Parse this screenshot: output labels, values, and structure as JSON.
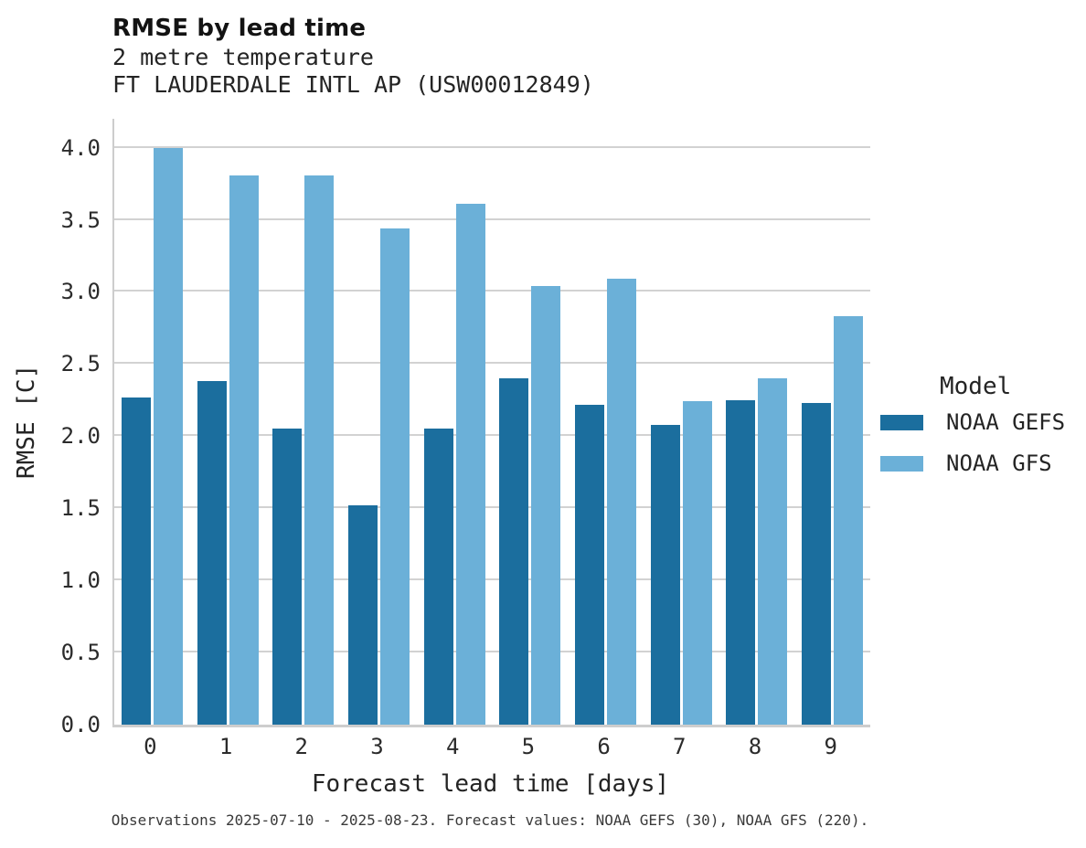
{
  "header": {
    "title": "RMSE by lead time",
    "subtitle_line1": "2 metre temperature",
    "subtitle_line2": "FT LAUDERDALE INTL AP (USW00012849)"
  },
  "legend": {
    "title": "Model"
  },
  "footer": {
    "text": "Observations 2025-07-10 - 2025-08-23. Forecast values: NOAA GEFS (30), NOAA GFS (220)."
  },
  "colors": {
    "gefs": "#1b6e9e",
    "gfs": "#6bb0d8",
    "gridline": "#d2d2d2",
    "spine": "#cdcdcd"
  },
  "chart_data": {
    "type": "bar",
    "title": "RMSE by lead time",
    "subtitle": [
      "2 metre temperature",
      "FT LAUDERDALE INTL AP (USW00012849)"
    ],
    "xlabel": "Forecast lead time [days]",
    "ylabel": "RMSE [C]",
    "categories": [
      "0",
      "1",
      "2",
      "3",
      "4",
      "5",
      "6",
      "7",
      "8",
      "9"
    ],
    "series": [
      {
        "name": "NOAA GEFS",
        "color": "#1b6e9e",
        "values": [
          2.27,
          2.38,
          2.05,
          1.52,
          2.05,
          2.4,
          2.22,
          2.08,
          2.25,
          2.23
        ]
      },
      {
        "name": "NOAA GFS",
        "color": "#6bb0d8",
        "values": [
          4.0,
          3.81,
          3.81,
          3.44,
          3.61,
          3.04,
          3.09,
          2.24,
          2.4,
          2.83
        ]
      }
    ],
    "ylim": [
      0,
      4.2
    ],
    "yticks": [
      0.0,
      0.5,
      1.0,
      1.5,
      2.0,
      2.5,
      3.0,
      3.5,
      4.0
    ],
    "grid": true,
    "legend_title": "Model",
    "legend_position": "right",
    "footnote": "Observations 2025-07-10 - 2025-08-23. Forecast values: NOAA GEFS (30), NOAA GFS (220)."
  }
}
